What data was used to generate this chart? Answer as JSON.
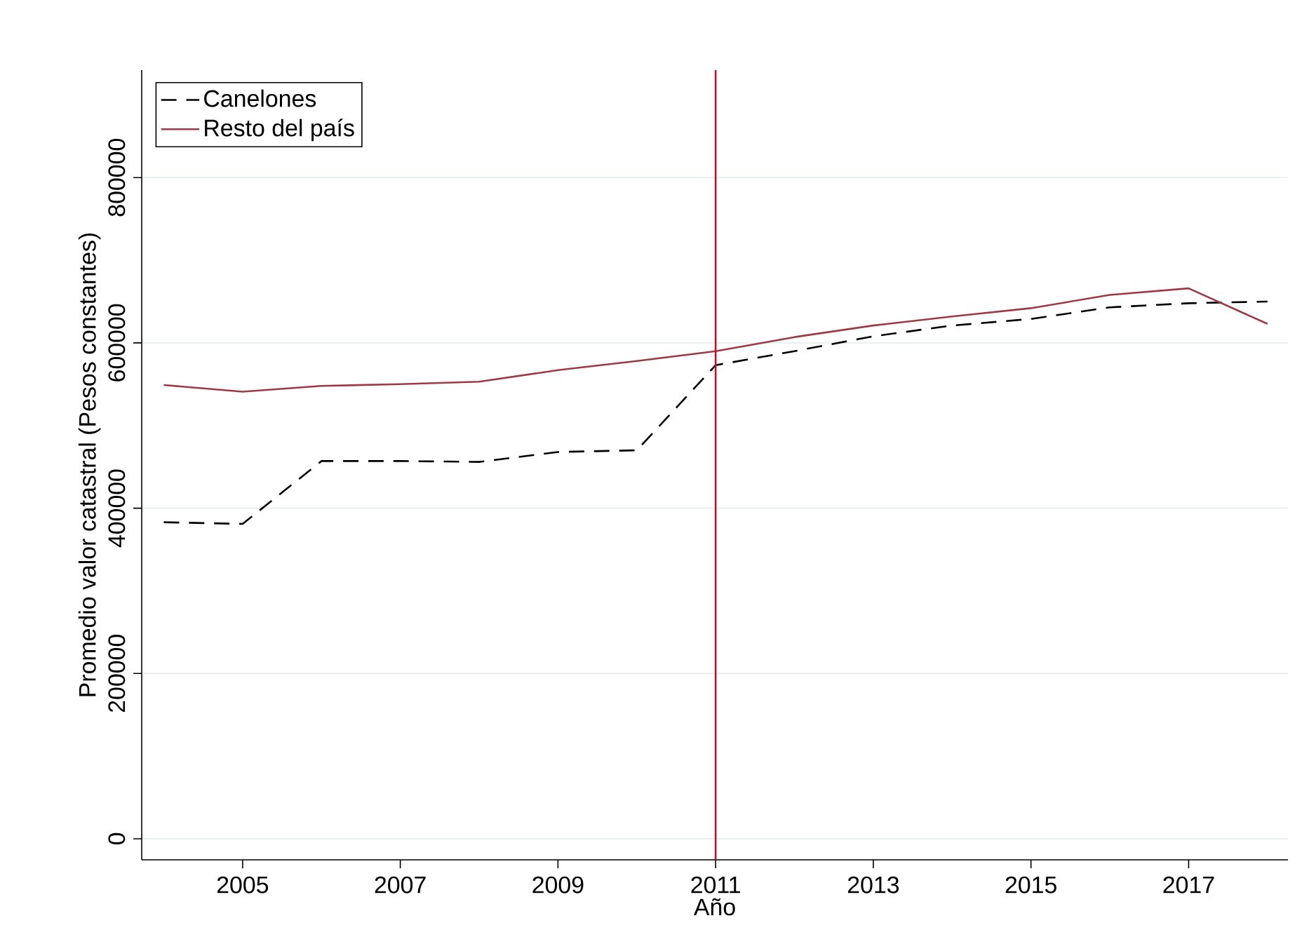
{
  "chart_data": {
    "type": "line",
    "xlabel": "Año",
    "ylabel": "Promedio valor catastral (Pesos constantes)",
    "x": [
      2004,
      2005,
      2006,
      2007,
      2008,
      2009,
      2010,
      2011,
      2012,
      2013,
      2014,
      2015,
      2016,
      2017,
      2018
    ],
    "series": [
      {
        "name": "Canelones",
        "color": "#000000",
        "line_style": "dashed",
        "values": [
          383000,
          381000,
          457000,
          457000,
          456000,
          468000,
          470000,
          573000,
          590000,
          608000,
          621000,
          629000,
          643000,
          648000,
          650000
        ]
      },
      {
        "name": "Resto del país",
        "color": "#9e3a45",
        "line_style": "solid",
        "values": [
          549000,
          541000,
          548000,
          550000,
          553000,
          567000,
          578000,
          590000,
          607000,
          621000,
          632000,
          642000,
          658000,
          666000,
          623000
        ]
      }
    ],
    "xlim": [
      2003.72,
      2018.26
    ],
    "ylim": [
      -25500,
      930000
    ],
    "xticks": [
      2005,
      2007,
      2009,
      2011,
      2013,
      2015,
      2017
    ],
    "yticks": [
      0,
      200000,
      400000,
      600000,
      800000
    ],
    "ref_lines": [
      {
        "axis": "x",
        "value": 2011,
        "color": "#c8102e"
      }
    ],
    "grid": "y",
    "legend": "top left",
    "marker": "none"
  }
}
